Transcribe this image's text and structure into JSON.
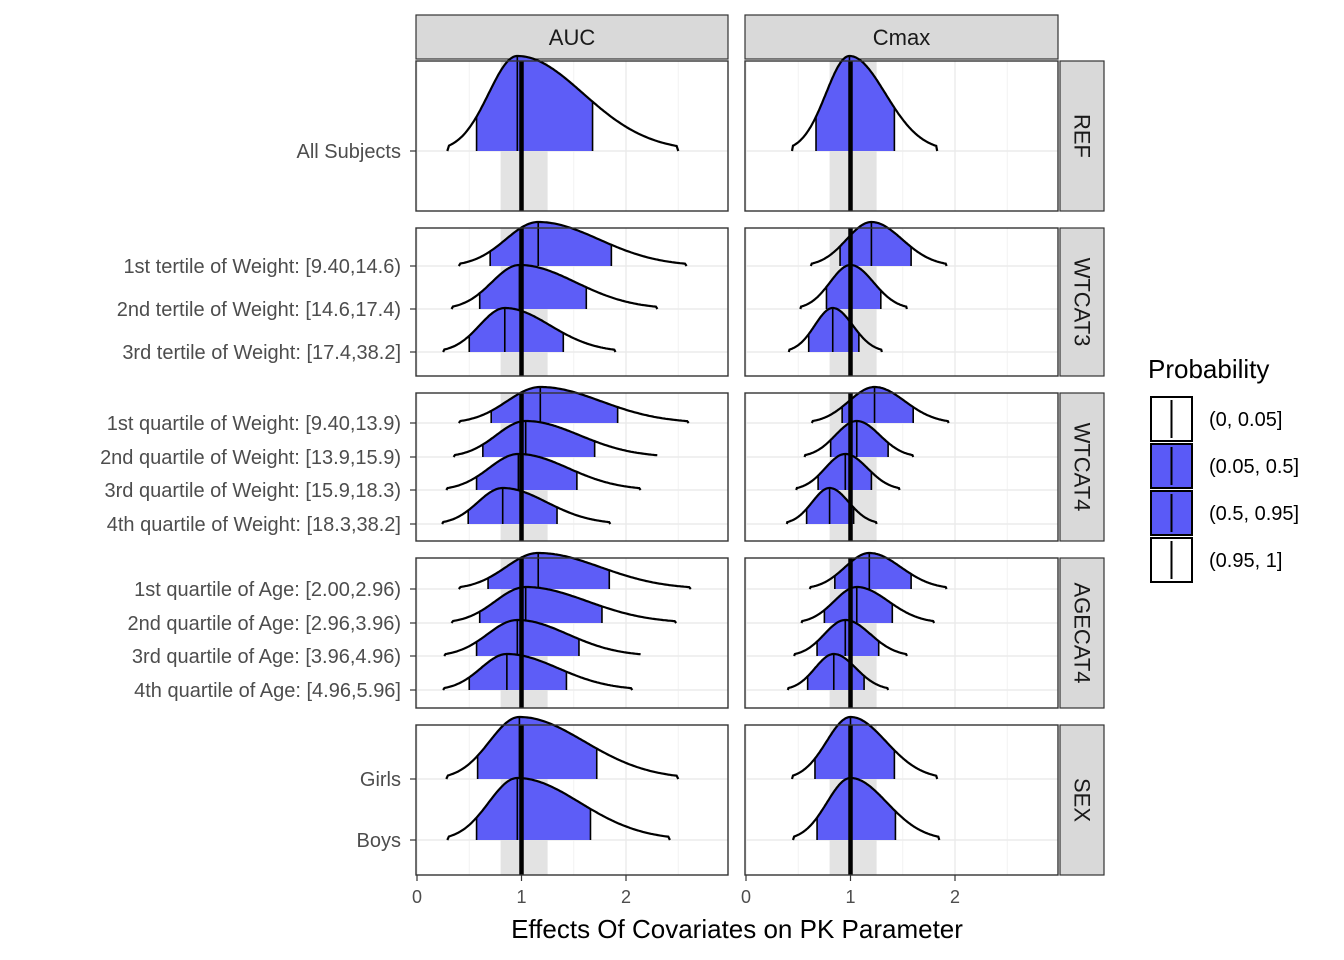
{
  "chart_data": {
    "type": "ridgeline",
    "xlabel": "Effects Of Covariates on PK Parameter",
    "xlim": [
      0,
      3
    ],
    "x_ticks": [
      0,
      1,
      2
    ],
    "reference_band": [
      0.8,
      1.25
    ],
    "reference_line": 1,
    "columns": [
      "AUC",
      "Cmax"
    ],
    "legend": {
      "title": "Probability",
      "position": "right",
      "entries": [
        {
          "label": "(0, 0.05]",
          "fill": "#ffffff"
        },
        {
          "label": "(0.05, 0.5]",
          "fill": "#5a5af7"
        },
        {
          "label": "(0.5, 0.95]",
          "fill": "#5a5af7"
        },
        {
          "label": "(0.95, 1]",
          "fill": "#ffffff"
        }
      ]
    },
    "colors": {
      "fill": "#5a5af7",
      "band": "#e3e3e3",
      "strip": "#d9d9d9",
      "grid": "#ebebeb"
    },
    "rows": [
      {
        "strip": "REF",
        "categories": [
          "All Subjects"
        ],
        "AUC": [
          {
            "lo": 0.29,
            "q05": 0.57,
            "med": 0.96,
            "q95": 1.68,
            "hi": 2.5
          }
        ],
        "Cmax": [
          {
            "lo": 0.44,
            "q05": 0.67,
            "med": 0.99,
            "q95": 1.42,
            "hi": 1.83
          }
        ]
      },
      {
        "strip": "WTCAT3",
        "categories": [
          "1st tertile of Weight: [9.40,14.6)",
          "2nd tertile of Weight: [14.6,17.4)",
          "3rd tertile of Weight: [17.4,38.2]"
        ],
        "AUC": [
          {
            "lo": 0.4,
            "q05": 0.7,
            "med": 1.16,
            "q95": 1.86,
            "hi": 2.58
          },
          {
            "lo": 0.33,
            "q05": 0.6,
            "med": 0.98,
            "q95": 1.62,
            "hi": 2.3
          },
          {
            "lo": 0.25,
            "q05": 0.5,
            "med": 0.84,
            "q95": 1.4,
            "hi": 1.9
          }
        ],
        "Cmax": [
          {
            "lo": 0.62,
            "q05": 0.9,
            "med": 1.2,
            "q95": 1.58,
            "hi": 1.92
          },
          {
            "lo": 0.52,
            "q05": 0.77,
            "med": 1.0,
            "q95": 1.29,
            "hi": 1.54
          },
          {
            "lo": 0.41,
            "q05": 0.6,
            "med": 0.83,
            "q95": 1.08,
            "hi": 1.3
          }
        ]
      },
      {
        "strip": "WTCAT4",
        "categories": [
          "1st quartile of Weight: [9.40,13.9)",
          "2nd quartile of Weight: [13.9,15.9)",
          "3rd quartile of Weight: [15.9,18.3)",
          "4th quartile of Weight: [18.3,38.2]"
        ],
        "AUC": [
          {
            "lo": 0.4,
            "q05": 0.71,
            "med": 1.18,
            "q95": 1.92,
            "hi": 2.6
          },
          {
            "lo": 0.35,
            "q05": 0.63,
            "med": 1.04,
            "q95": 1.7,
            "hi": 2.3
          },
          {
            "lo": 0.28,
            "q05": 0.57,
            "med": 0.97,
            "q95": 1.53,
            "hi": 2.14
          },
          {
            "lo": 0.24,
            "q05": 0.49,
            "med": 0.82,
            "q95": 1.34,
            "hi": 1.85
          }
        ],
        "Cmax": [
          {
            "lo": 0.63,
            "q05": 0.92,
            "med": 1.23,
            "q95": 1.6,
            "hi": 1.94
          },
          {
            "lo": 0.56,
            "q05": 0.81,
            "med": 1.06,
            "q95": 1.36,
            "hi": 1.6
          },
          {
            "lo": 0.48,
            "q05": 0.69,
            "med": 0.95,
            "q95": 1.2,
            "hi": 1.47
          },
          {
            "lo": 0.39,
            "q05": 0.58,
            "med": 0.8,
            "q95": 1.03,
            "hi": 1.25
          }
        ]
      },
      {
        "strip": "AGECAT4",
        "categories": [
          "1st quartile of Age: [2.00,2.96)",
          "2nd quartile of Age: [2.96,3.96)",
          "3rd quartile of Age: [3.96,4.96)",
          "4th quartile of Age: [4.96,5.96]"
        ],
        "AUC": [
          {
            "lo": 0.4,
            "q05": 0.68,
            "med": 1.16,
            "q95": 1.84,
            "hi": 2.62
          },
          {
            "lo": 0.33,
            "q05": 0.6,
            "med": 1.04,
            "q95": 1.77,
            "hi": 2.48
          },
          {
            "lo": 0.26,
            "q05": 0.57,
            "med": 0.96,
            "q95": 1.55,
            "hi": 2.14
          },
          {
            "lo": 0.25,
            "q05": 0.5,
            "med": 0.86,
            "q95": 1.43,
            "hi": 2.06
          }
        ],
        "Cmax": [
          {
            "lo": 0.61,
            "q05": 0.85,
            "med": 1.18,
            "q95": 1.58,
            "hi": 1.92
          },
          {
            "lo": 0.53,
            "q05": 0.75,
            "med": 1.06,
            "q95": 1.4,
            "hi": 1.8
          },
          {
            "lo": 0.46,
            "q05": 0.68,
            "med": 0.95,
            "q95": 1.27,
            "hi": 1.54
          },
          {
            "lo": 0.4,
            "q05": 0.59,
            "med": 0.84,
            "q95": 1.13,
            "hi": 1.36
          }
        ]
      },
      {
        "strip": "SEX",
        "categories": [
          "Girls",
          "Boys"
        ],
        "AUC": [
          {
            "lo": 0.28,
            "q05": 0.58,
            "med": 0.98,
            "q95": 1.72,
            "hi": 2.5
          },
          {
            "lo": 0.29,
            "q05": 0.57,
            "med": 0.96,
            "q95": 1.66,
            "hi": 2.42
          }
        ],
        "Cmax": [
          {
            "lo": 0.44,
            "q05": 0.66,
            "med": 1.0,
            "q95": 1.42,
            "hi": 1.83
          },
          {
            "lo": 0.45,
            "q05": 0.68,
            "med": 1.0,
            "q95": 1.43,
            "hi": 1.85
          }
        ]
      }
    ]
  }
}
